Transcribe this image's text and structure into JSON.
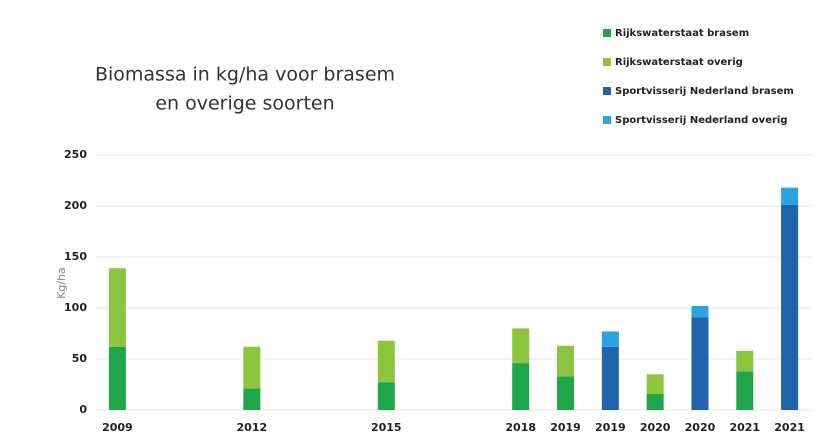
{
  "chart_data": {
    "type": "stacked_bar",
    "title": [
      "Biomassa in kg/ha voor brasem",
      "en overige soorten"
    ],
    "y_label": "Kg/ha",
    "categories": [
      "2009",
      null,
      null,
      "2012",
      null,
      null,
      "2015",
      null,
      null,
      "2018",
      "2019",
      "2019",
      "2020",
      "2020",
      "2021",
      "2021"
    ],
    "series": [
      {
        "name": "Rijkswaterstaat brasem",
        "color": "#1fa64a",
        "values": [
          62,
          null,
          null,
          21,
          null,
          null,
          27,
          null,
          null,
          46,
          33,
          null,
          16,
          null,
          38,
          null
        ]
      },
      {
        "name": "Rijkswaterstaat overig",
        "color": "#8cc63f",
        "values": [
          77,
          null,
          null,
          41,
          null,
          null,
          41,
          null,
          null,
          34,
          30,
          null,
          19,
          null,
          20,
          null
        ]
      },
      {
        "name": "Sportvisserij Nederland brasem",
        "color": "#1f64ad",
        "values": [
          null,
          null,
          null,
          null,
          null,
          null,
          null,
          null,
          null,
          null,
          null,
          62,
          null,
          91,
          null,
          201
        ]
      },
      {
        "name": "Sportvisserij Nederland overig",
        "color": "#2aa3e0",
        "values": [
          null,
          null,
          null,
          null,
          null,
          null,
          null,
          null,
          null,
          null,
          null,
          15,
          null,
          11,
          null,
          17
        ]
      }
    ],
    "ylim": [
      0,
      250
    ],
    "yticks": [
      0,
      50,
      100,
      150,
      200,
      250
    ],
    "grid": true,
    "legend": "top-right"
  }
}
